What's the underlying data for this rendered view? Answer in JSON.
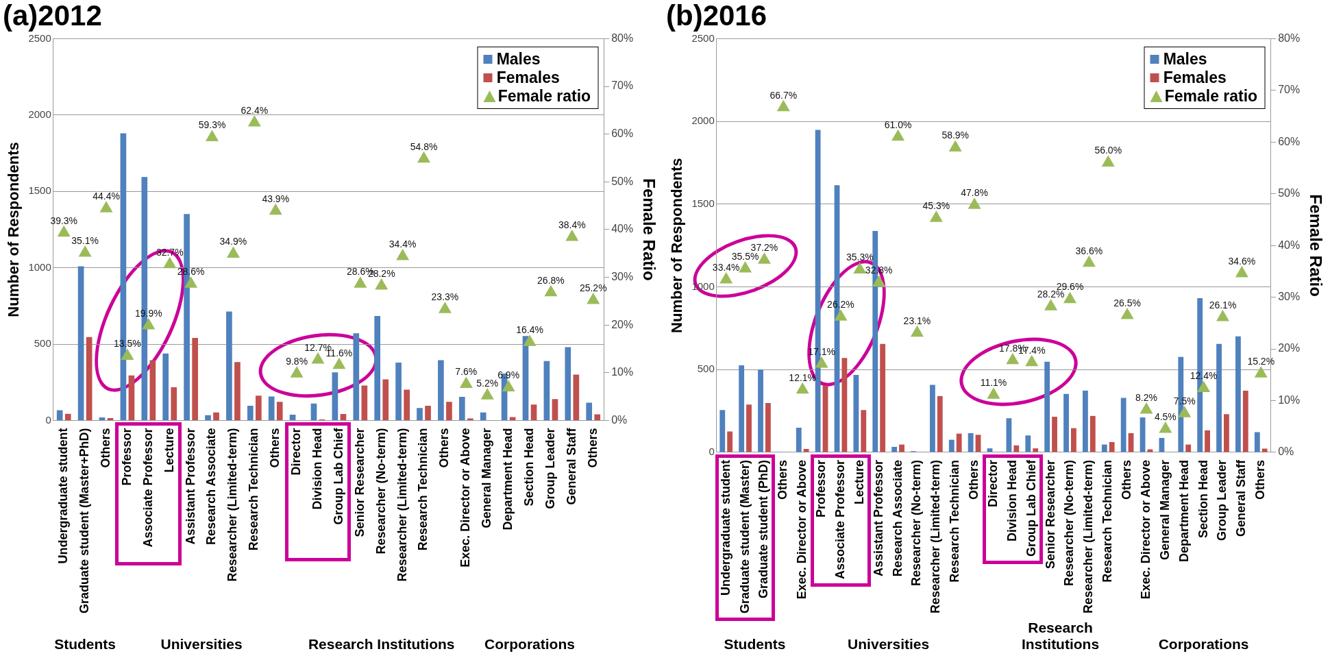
{
  "chart_data": [
    {
      "type": "bar",
      "title": "(a)2012",
      "ylabel": "Number of Respondents",
      "y2label": "Female Ratio",
      "categories": [
        "Undergraduate student",
        "Graduate student (Master+PhD)",
        "Others",
        "Professor",
        "Associate Professor",
        "Lecture",
        "Assistant Professor",
        "Research Associate",
        "Researcher (Limited-term)",
        "Research Technician",
        "Others",
        "Director",
        "Division Head",
        "Group Lab Chief",
        "Senior Researcher",
        "Researcher (No-term)",
        "Researcher (Limited-term)",
        "Research Technician",
        "Others",
        "Exec. Director or Above",
        "General Manager",
        "Department Head",
        "Section Head",
        "Group Leader",
        "General Staff",
        "Others"
      ],
      "series": [
        {
          "name": "Males",
          "color": "#4f81bd",
          "values": [
            67,
            1010,
            20,
            1880,
            1594,
            439,
            1352,
            35,
            713,
            96,
            157,
            38,
            111,
            315,
            571,
            684,
            379,
            82,
            395,
            155,
            53,
            307,
            553,
            389,
            480,
            116
          ]
        },
        {
          "name": "Females",
          "color": "#c0504d",
          "values": [
            44,
            546,
            16,
            295,
            395,
            217,
            541,
            53,
            382,
            162,
            122,
            null,
            7,
            42,
            229,
            269,
            202,
            96,
            122,
            13,
            null,
            22,
            104,
            140,
            300,
            40
          ]
        },
        {
          "name": "Female ratio",
          "type": "scatter",
          "axis": "y2",
          "color": "#9bbb59",
          "values": [
            39.3,
            35.1,
            44.4,
            13.5,
            19.9,
            32.7,
            28.6,
            59.3,
            34.9,
            62.4,
            43.9,
            9.8,
            12.7,
            11.6,
            28.6,
            28.2,
            34.4,
            54.8,
            23.3,
            7.6,
            5.2,
            6.9,
            16.4,
            26.8,
            38.4,
            25.2
          ],
          "value_labels": [
            "39.3%",
            "35.1%",
            "44.4%",
            "13.5%",
            "19.9%",
            "32.7%",
            "28.6%",
            "59.3%",
            "34.9%",
            "62.4%",
            "43.9%",
            "9.8%",
            "12.7%",
            "11.6%",
            "28.6%",
            "28.2%",
            "34.4%",
            "54.8%",
            "23.3%",
            "7.6%",
            "5.2%",
            "6.9%",
            "16.4%",
            "26.8%",
            "38.4%",
            "25.2%"
          ]
        }
      ],
      "ylim": [
        0,
        2500
      ],
      "yticks": [
        0,
        500,
        1000,
        1500,
        2000,
        2500
      ],
      "y2lim": [
        0,
        80
      ],
      "y2ticks": [
        {
          "value": 0,
          "label": "0%"
        },
        {
          "value": 10,
          "label": "10%"
        },
        {
          "value": 20,
          "label": "20%"
        },
        {
          "value": 30,
          "label": "30%"
        },
        {
          "value": 40,
          "label": "40%"
        },
        {
          "value": 50,
          "label": "50%"
        },
        {
          "value": 60,
          "label": "60%"
        },
        {
          "value": 70,
          "label": "70%"
        },
        {
          "value": 80,
          "label": "80%"
        }
      ],
      "grid": "y",
      "legend": "top right",
      "marker": "triangle",
      "annotations": [
        "Students",
        "Universities",
        "Research Institutions",
        "Corporations"
      ]
    },
    {
      "type": "bar",
      "title": "(b)2016",
      "ylabel": "Number of Respondents",
      "y2label": "Female Ratio",
      "categories": [
        "Undergraduate student",
        "Graduate student (Master)",
        "Graduate student (PhD)",
        "Others",
        "Exec. Director or Above",
        "Professor",
        "Associate Professor",
        "Lecture",
        "Assistant Professor",
        "Research Associate",
        "Researcher (No-term)",
        "Researcher (Limited-term)",
        "Research Technician",
        "Others",
        "Director",
        "Division Head",
        "Group Lab Chief",
        "Senior Researcher",
        "Researcher (No-term)",
        "Researcher (Limited-term)",
        "Research Technician",
        "Others",
        "Exec. Director or Above",
        "General Manager",
        "Department Head",
        "Section Head",
        "Group Leader",
        "General Staff",
        "Others"
      ],
      "series": [
        {
          "name": "Males",
          "color": "#4f81bd",
          "values": [
            255,
            526,
            500,
            1,
            149,
            1949,
            1614,
            468,
            1338,
            33,
            7,
            408,
            76,
            116,
            24,
            206,
            102,
            548,
            353,
            373,
            47,
            329,
            211,
            87,
            577,
            932,
            655,
            701,
            122
          ]
        },
        {
          "name": "Females",
          "color": "#c0504d",
          "values": [
            126,
            289,
            298,
            2,
            20,
            404,
            570,
            255,
            655,
            47,
            2,
            340,
            113,
            106,
            null,
            42,
            24,
            215,
            146,
            220,
            62,
            116,
            18,
            null,
            47,
            133,
            231,
            373,
            22
          ]
        },
        {
          "name": "Female ratio",
          "type": "scatter",
          "axis": "y2",
          "color": "#9bbb59",
          "values": [
            33.4,
            35.5,
            37.2,
            66.7,
            12.1,
            17.1,
            26.2,
            35.3,
            32.8,
            61.0,
            23.1,
            45.3,
            58.9,
            47.8,
            11.1,
            17.8,
            17.4,
            28.2,
            29.6,
            36.6,
            56.0,
            26.5,
            8.2,
            4.5,
            7.5,
            12.4,
            26.1,
            34.6,
            15.2
          ],
          "value_labels": [
            "33.4%",
            "35.5%",
            "37.2%",
            "66.7%",
            "12.1%",
            "17.1%",
            "26.2%",
            "35.3%",
            "32.8%",
            "61.0%",
            "23.1%",
            "45.3%",
            "58.9%",
            "47.8%",
            "11.1%",
            "17.8%",
            "17.4%",
            "28.2%",
            "29.6%",
            "36.6%",
            "56.0%",
            "26.5%",
            "8.2%",
            "4.5%",
            "7.5%",
            "12.4%",
            "26.1%",
            "34.6%",
            "15.2%"
          ]
        }
      ],
      "ylim": [
        0,
        2500
      ],
      "yticks": [
        0,
        500,
        1000,
        1500,
        2000,
        2500
      ],
      "y2lim": [
        0,
        80
      ],
      "y2ticks": [
        {
          "value": 0,
          "label": "0%"
        },
        {
          "value": 10,
          "label": "10%"
        },
        {
          "value": 20,
          "label": "20%"
        },
        {
          "value": 30,
          "label": "30%"
        },
        {
          "value": 40,
          "label": "40%"
        },
        {
          "value": 50,
          "label": "50%"
        },
        {
          "value": 60,
          "label": "60%"
        },
        {
          "value": 70,
          "label": "70%"
        },
        {
          "value": 80,
          "label": "80%"
        }
      ],
      "grid": "y",
      "legend": "top right",
      "marker": "triangle",
      "annotations": [
        "Students",
        "Universities",
        "Research\nInstitutions",
        "Corporations"
      ]
    }
  ]
}
